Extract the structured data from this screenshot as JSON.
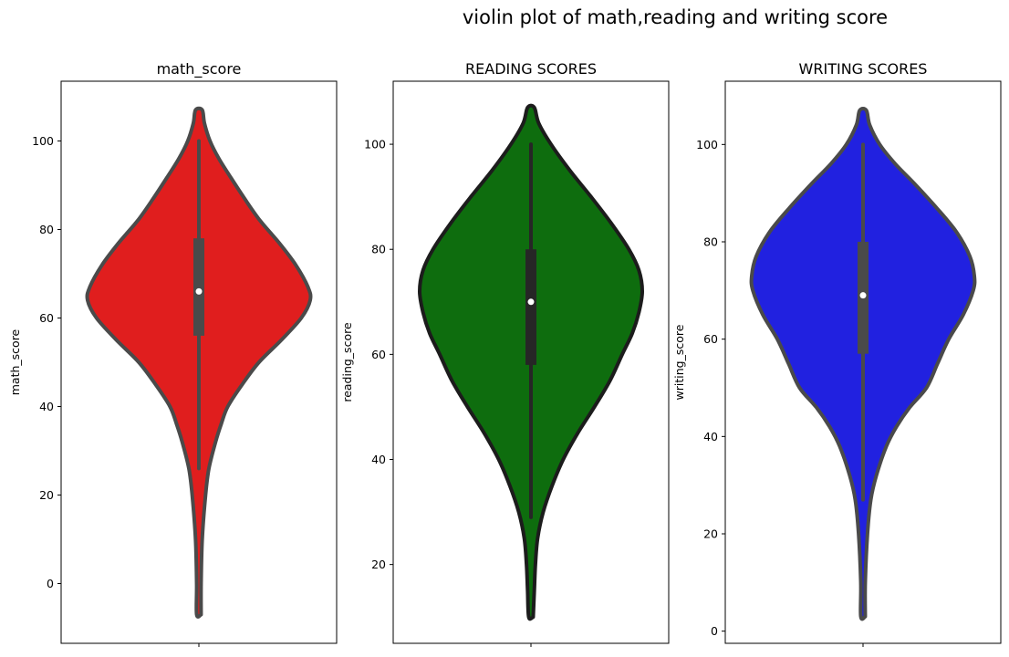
{
  "figure": {
    "suptitle": "violin plot of math,reading and writing score"
  },
  "chart_data": [
    {
      "type": "violin",
      "title": "math_score",
      "xlabel": "",
      "ylabel": "math_score",
      "ylim": [
        -13.5,
        113.5
      ],
      "yticks": [
        0,
        20,
        40,
        60,
        80,
        100
      ],
      "grid": false,
      "fill_color": "#e01e1e",
      "edge_color": "#4a4a4a",
      "box_color": "#4a4a4a",
      "quartiles": {
        "q1": 56,
        "median": 66,
        "q3": 78,
        "whisker_low": 26,
        "whisker_high": 100
      },
      "density": [
        [
          -7,
          0.02
        ],
        [
          0,
          0.02
        ],
        [
          10,
          0.03
        ],
        [
          20,
          0.06
        ],
        [
          26,
          0.09
        ],
        [
          32,
          0.15
        ],
        [
          36,
          0.2
        ],
        [
          40,
          0.26
        ],
        [
          45,
          0.39
        ],
        [
          50,
          0.54
        ],
        [
          55,
          0.74
        ],
        [
          60,
          0.92
        ],
        [
          64,
          1.0
        ],
        [
          67,
          0.98
        ],
        [
          72,
          0.87
        ],
        [
          77,
          0.72
        ],
        [
          82,
          0.55
        ],
        [
          87,
          0.41
        ],
        [
          92,
          0.28
        ],
        [
          96,
          0.18
        ],
        [
          100,
          0.1
        ],
        [
          104,
          0.05
        ],
        [
          107,
          0.03
        ]
      ]
    },
    {
      "type": "violin",
      "title": "READING SCORES",
      "xlabel": "",
      "ylabel": "reading_score",
      "ylim": [
        5,
        112
      ],
      "yticks": [
        20,
        40,
        60,
        80,
        100
      ],
      "grid": false,
      "fill_color": "#0e6d0e",
      "edge_color": "#1c1c1c",
      "box_color": "#262626",
      "quartiles": {
        "q1": 58,
        "median": 70,
        "q3": 80,
        "whisker_low": 29,
        "whisker_high": 100
      },
      "density": [
        [
          10,
          0.02
        ],
        [
          15,
          0.03
        ],
        [
          20,
          0.04
        ],
        [
          25,
          0.06
        ],
        [
          30,
          0.11
        ],
        [
          35,
          0.19
        ],
        [
          40,
          0.29
        ],
        [
          45,
          0.42
        ],
        [
          50,
          0.57
        ],
        [
          55,
          0.71
        ],
        [
          60,
          0.82
        ],
        [
          64,
          0.91
        ],
        [
          68,
          0.97
        ],
        [
          72,
          1.0
        ],
        [
          76,
          0.97
        ],
        [
          80,
          0.88
        ],
        [
          85,
          0.72
        ],
        [
          90,
          0.54
        ],
        [
          95,
          0.35
        ],
        [
          100,
          0.18
        ],
        [
          104,
          0.07
        ],
        [
          107,
          0.03
        ]
      ]
    },
    {
      "type": "violin",
      "title": "WRITING SCORES",
      "xlabel": "",
      "ylabel": "writing_score",
      "ylim": [
        -2.5,
        113
      ],
      "yticks": [
        0,
        20,
        40,
        60,
        80,
        100
      ],
      "grid": false,
      "fill_color": "#2121e0",
      "edge_color": "#4a4a4a",
      "box_color": "#4a4a4a",
      "quartiles": {
        "q1": 57,
        "median": 69,
        "q3": 80,
        "whisker_low": 27,
        "whisker_high": 100
      },
      "density": [
        [
          3,
          0.02
        ],
        [
          10,
          0.02
        ],
        [
          20,
          0.04
        ],
        [
          27,
          0.07
        ],
        [
          32,
          0.12
        ],
        [
          38,
          0.21
        ],
        [
          42,
          0.3
        ],
        [
          46,
          0.42
        ],
        [
          50,
          0.57
        ],
        [
          55,
          0.67
        ],
        [
          60,
          0.77
        ],
        [
          65,
          0.9
        ],
        [
          70,
          0.99
        ],
        [
          73,
          1.0
        ],
        [
          77,
          0.96
        ],
        [
          82,
          0.84
        ],
        [
          87,
          0.66
        ],
        [
          92,
          0.46
        ],
        [
          96,
          0.29
        ],
        [
          100,
          0.15
        ],
        [
          104,
          0.06
        ],
        [
          107,
          0.03
        ]
      ]
    }
  ]
}
